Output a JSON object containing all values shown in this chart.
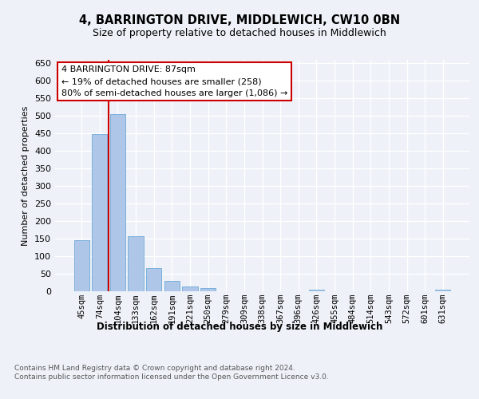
{
  "title": "4, BARRINGTON DRIVE, MIDDLEWICH, CW10 0BN",
  "subtitle": "Size of property relative to detached houses in Middlewich",
  "xlabel": "Distribution of detached houses by size in Middlewich",
  "ylabel": "Number of detached properties",
  "categories": [
    "45sqm",
    "74sqm",
    "104sqm",
    "133sqm",
    "162sqm",
    "191sqm",
    "221sqm",
    "250sqm",
    "279sqm",
    "309sqm",
    "338sqm",
    "367sqm",
    "396sqm",
    "426sqm",
    "455sqm",
    "484sqm",
    "514sqm",
    "543sqm",
    "572sqm",
    "601sqm",
    "631sqm"
  ],
  "values": [
    145,
    449,
    506,
    157,
    65,
    30,
    13,
    8,
    0,
    0,
    0,
    0,
    0,
    5,
    0,
    0,
    0,
    0,
    0,
    0,
    5
  ],
  "bar_color": "#aec6e8",
  "bar_edge_color": "#5a9fd4",
  "vline_x": 1.5,
  "annotation_text": "4 BARRINGTON DRIVE: 87sqm\n← 19% of detached houses are smaller (258)\n80% of semi-detached houses are larger (1,086) →",
  "annotation_box_color": "#ffffff",
  "annotation_box_edge_color": "#cc0000",
  "footer_text": "Contains HM Land Registry data © Crown copyright and database right 2024.\nContains public sector information licensed under the Open Government Licence v3.0.",
  "background_color": "#eef2f8",
  "plot_bg_color": "#eef2f8",
  "ylim": [
    0,
    660
  ],
  "yticks": [
    0,
    50,
    100,
    150,
    200,
    250,
    300,
    350,
    400,
    450,
    500,
    550,
    600,
    650
  ]
}
